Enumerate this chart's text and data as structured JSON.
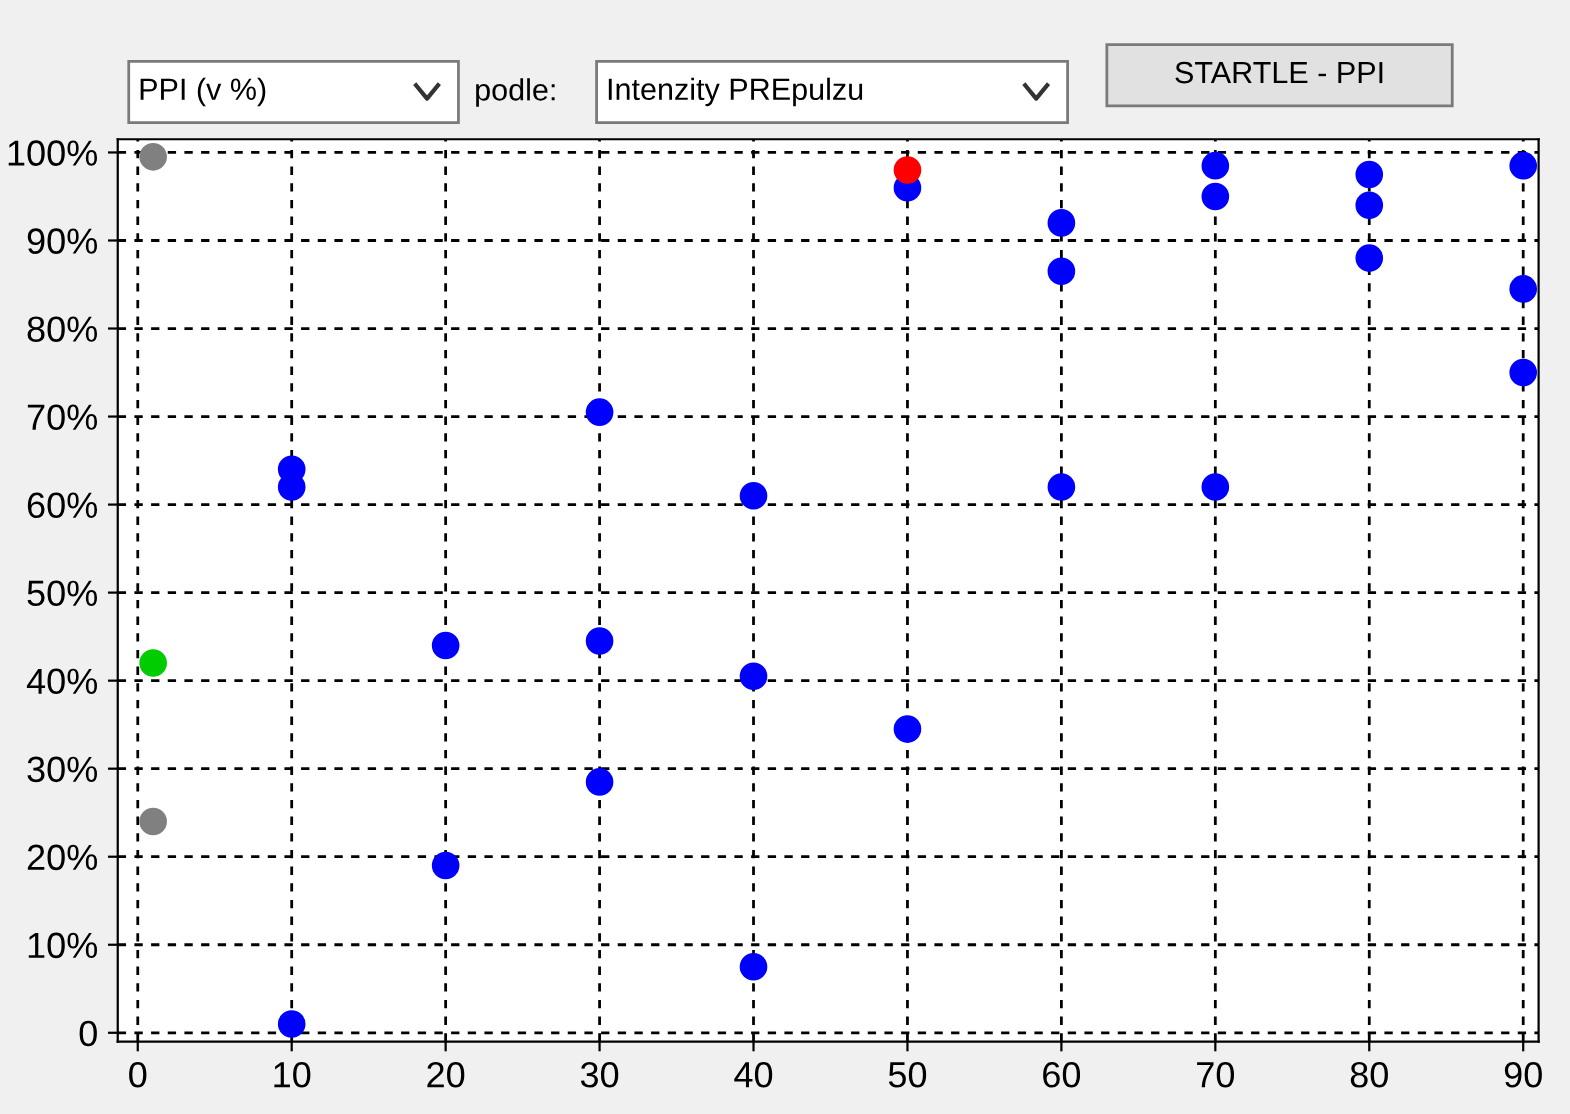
{
  "chart_data": {
    "type": "scatter",
    "annotations": [
      "PPI (v %)",
      "podle:",
      "Intenzity PREpulzu",
      "STARTLE - PPI"
    ],
    "series": [
      {
        "color": "#0000ff",
        "x": [
          10,
          10,
          10,
          20,
          20,
          30,
          30,
          30,
          40,
          40,
          40,
          50,
          50,
          60,
          60,
          60,
          70,
          70,
          70,
          80,
          80,
          80,
          90,
          90,
          90
        ],
        "values": [
          1,
          64,
          62,
          44,
          19,
          70.5,
          44.5,
          28.5,
          61,
          40.5,
          7.5,
          96,
          34.5,
          92,
          86.5,
          62,
          98.5,
          95,
          62,
          97.5,
          94,
          88,
          98.5,
          84.5,
          75
        ]
      },
      {
        "color": "#ff0000",
        "x": [
          50
        ],
        "values": [
          98
        ]
      },
      {
        "color": "#808080",
        "x": [
          1,
          1
        ],
        "values": [
          99.5,
          24
        ]
      },
      {
        "color": "#00cc00",
        "x": [
          1
        ],
        "values": [
          42
        ]
      }
    ],
    "marker": "circle",
    "grid": true,
    "legend": false,
    "xlim": [
      -1.3,
      91
    ],
    "ylim": [
      -1,
      101.5
    ],
    "xticks": [
      0,
      10,
      20,
      30,
      40,
      50,
      60,
      70,
      80,
      90
    ],
    "yticks": [
      {
        "value": 0,
        "label": "0"
      },
      {
        "value": 10,
        "label": "10%"
      },
      {
        "value": 20,
        "label": "20%"
      },
      {
        "value": 30,
        "label": "30%"
      },
      {
        "value": 40,
        "label": "40%"
      },
      {
        "value": 50,
        "label": "50%"
      },
      {
        "value": 60,
        "label": "60%"
      },
      {
        "value": 70,
        "label": "70%"
      },
      {
        "value": 80,
        "label": "80%"
      },
      {
        "value": 90,
        "label": "90%"
      },
      {
        "value": 100,
        "label": "100%"
      }
    ]
  }
}
